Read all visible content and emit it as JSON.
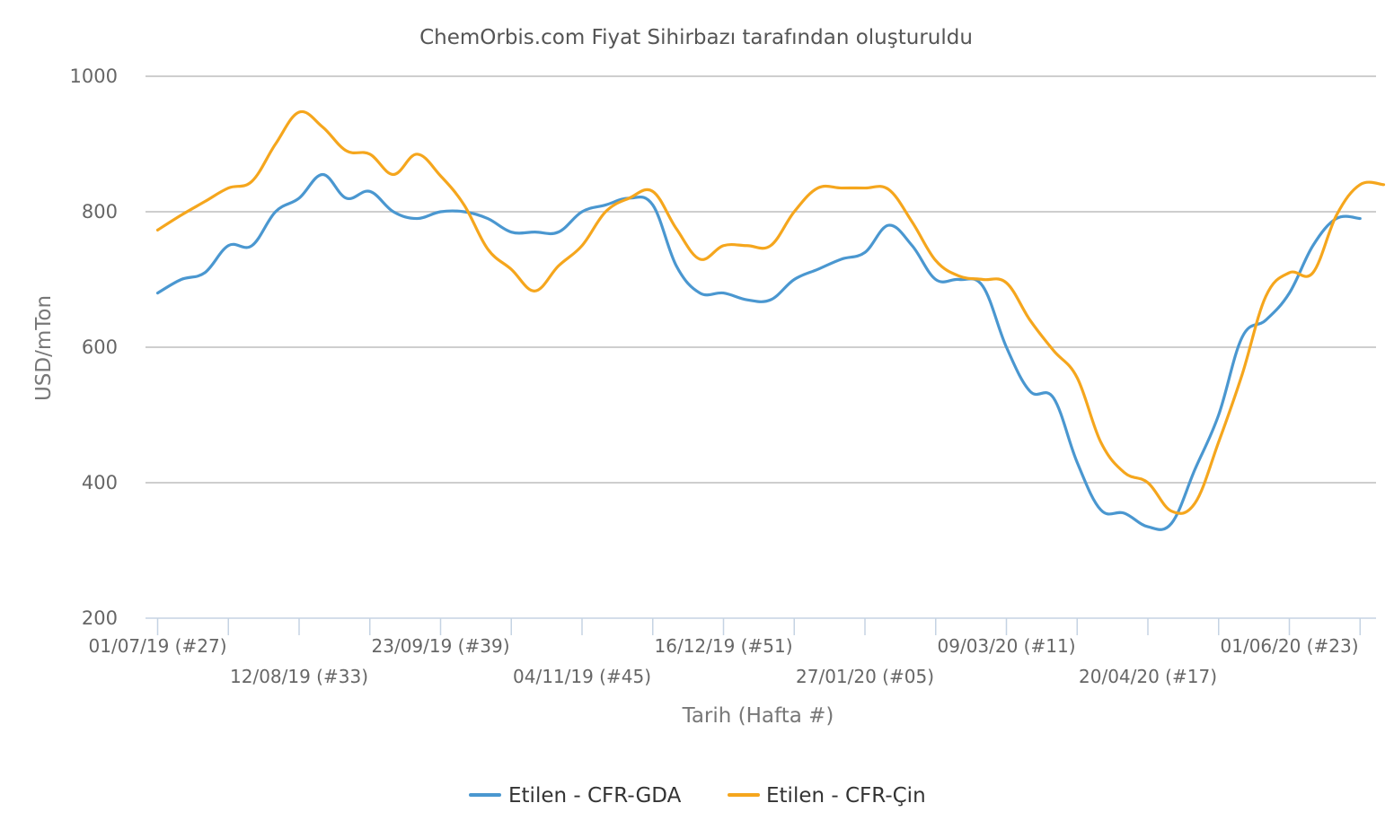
{
  "chart_data": {
    "type": "line",
    "title": "ChemOrbis.com Fiyat Sihirbazı tarafından oluşturuldu",
    "xlabel": "Tarih (Hafta #)",
    "ylabel": "USD/mTon",
    "ylim": [
      200,
      1000
    ],
    "yticks": [
      200,
      400,
      600,
      800,
      1000
    ],
    "grid": true,
    "legend_position": "bottom-center",
    "x_labels": [
      {
        "week": 0,
        "label": "01/07/19 (#27)"
      },
      {
        "week": 6,
        "label": "12/08/19 (#33)"
      },
      {
        "week": 12,
        "label": "23/09/19 (#39)"
      },
      {
        "week": 18,
        "label": "04/11/19 (#45)"
      },
      {
        "week": 24,
        "label": "16/12/19 (#51)"
      },
      {
        "week": 30,
        "label": "27/01/20 (#05)"
      },
      {
        "week": 36,
        "label": "09/03/20 (#11)"
      },
      {
        "week": 42,
        "label": "20/04/20 (#17)"
      },
      {
        "week": 48,
        "label": "01/06/20 (#23)"
      }
    ],
    "series": [
      {
        "name": "Etilen - CFR-GDA",
        "color": "#4a97d0",
        "values": [
          680,
          700,
          710,
          750,
          750,
          800,
          820,
          855,
          820,
          830,
          800,
          790,
          800,
          800,
          790,
          770,
          770,
          770,
          800,
          810,
          820,
          810,
          720,
          680,
          680,
          670,
          670,
          700,
          715,
          730,
          740,
          780,
          750,
          700,
          700,
          690,
          600,
          535,
          525,
          430,
          360,
          355,
          335,
          340,
          420,
          500,
          615,
          640,
          680,
          750,
          790,
          790
        ]
      },
      {
        "name": "Etilen - CFR-Çin",
        "color": "#f5a61d",
        "values": [
          773,
          795,
          815,
          835,
          845,
          900,
          947,
          925,
          890,
          885,
          855,
          885,
          853,
          810,
          745,
          715,
          683,
          720,
          750,
          800,
          820,
          830,
          775,
          730,
          750,
          750,
          750,
          800,
          835,
          835,
          835,
          833,
          785,
          728,
          705,
          700,
          695,
          640,
          595,
          555,
          460,
          415,
          400,
          358,
          370,
          460,
          560,
          675,
          710,
          710,
          795,
          840,
          840
        ]
      }
    ]
  }
}
